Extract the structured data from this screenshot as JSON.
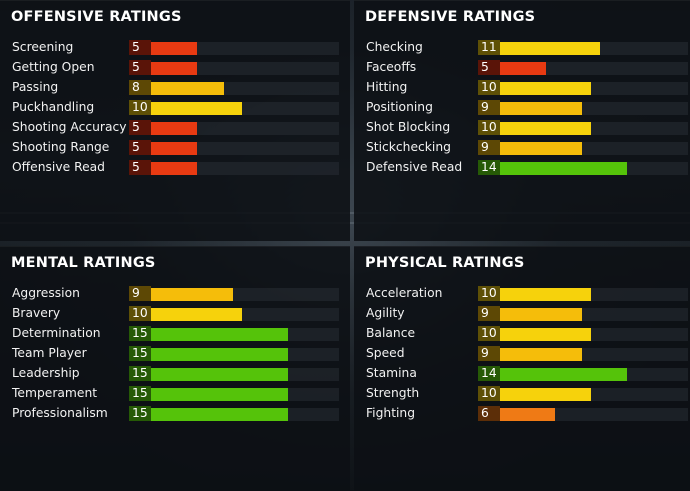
{
  "colors": {
    "red": "#e83a12",
    "red_num": "#5a1408",
    "orange": "#ef7a15",
    "orange_num": "#5c2e08",
    "yellow": "#f6d20c",
    "yellow_num": "#5e5006",
    "gold": "#f5bd0a",
    "gold_num": "#5d4805",
    "green": "#55c30a",
    "green_num": "#265a06"
  },
  "panels": [
    {
      "title": "OFFENSIVE RATINGS",
      "ratings": [
        {
          "label": "Screening",
          "value": "5",
          "color": "red"
        },
        {
          "label": "Getting Open",
          "value": "5",
          "color": "red"
        },
        {
          "label": "Passing",
          "value": "8",
          "color": "gold"
        },
        {
          "label": "Puckhandling",
          "value": "10",
          "color": "yellow"
        },
        {
          "label": "Shooting Accuracy",
          "value": "5",
          "color": "red"
        },
        {
          "label": "Shooting Range",
          "value": "5",
          "color": "red"
        },
        {
          "label": "Offensive Read",
          "value": "5",
          "color": "red"
        }
      ]
    },
    {
      "title": "DEFENSIVE RATINGS",
      "ratings": [
        {
          "label": "Checking",
          "value": "11",
          "color": "yellow"
        },
        {
          "label": "Faceoffs",
          "value": "5",
          "color": "red"
        },
        {
          "label": "Hitting",
          "value": "10",
          "color": "yellow"
        },
        {
          "label": "Positioning",
          "value": "9",
          "color": "gold"
        },
        {
          "label": "Shot Blocking",
          "value": "10",
          "color": "yellow"
        },
        {
          "label": "Stickchecking",
          "value": "9",
          "color": "gold"
        },
        {
          "label": "Defensive Read",
          "value": "14",
          "color": "green"
        }
      ]
    },
    {
      "title": "MENTAL RATINGS",
      "ratings": [
        {
          "label": "Aggression",
          "value": "9",
          "color": "gold"
        },
        {
          "label": "Bravery",
          "value": "10",
          "color": "yellow"
        },
        {
          "label": "Determination",
          "value": "15",
          "color": "green"
        },
        {
          "label": "Team Player",
          "value": "15",
          "color": "green"
        },
        {
          "label": "Leadership",
          "value": "15",
          "color": "green"
        },
        {
          "label": "Temperament",
          "value": "15",
          "color": "green"
        },
        {
          "label": "Professionalism",
          "value": "15",
          "color": "green"
        }
      ]
    },
    {
      "title": "PHYSICAL RATINGS",
      "ratings": [
        {
          "label": "Acceleration",
          "value": "10",
          "color": "yellow"
        },
        {
          "label": "Agility",
          "value": "9",
          "color": "gold"
        },
        {
          "label": "Balance",
          "value": "10",
          "color": "yellow"
        },
        {
          "label": "Speed",
          "value": "9",
          "color": "gold"
        },
        {
          "label": "Stamina",
          "value": "14",
          "color": "green"
        },
        {
          "label": "Strength",
          "value": "10",
          "color": "yellow"
        },
        {
          "label": "Fighting",
          "value": "6",
          "color": "orange"
        }
      ]
    }
  ]
}
